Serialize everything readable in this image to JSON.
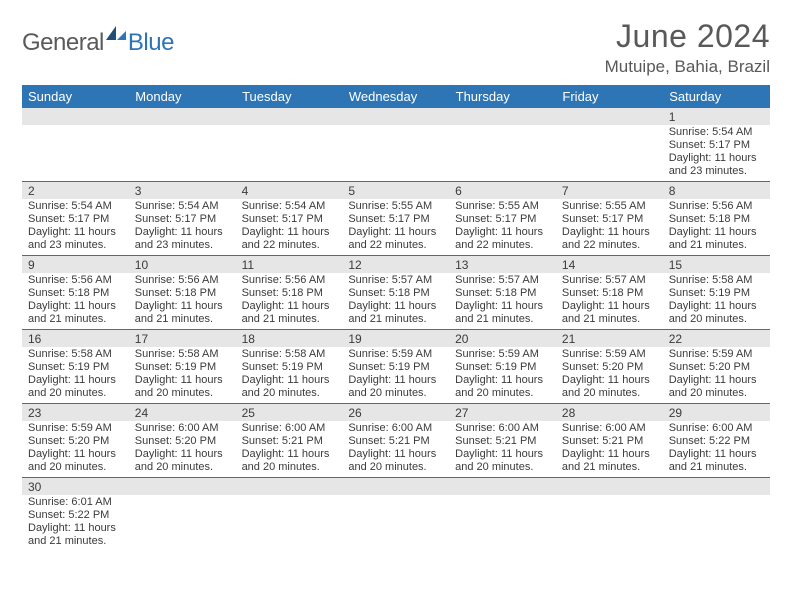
{
  "logo": {
    "part1": "General",
    "part2": "Blue",
    "primary_color": "#2e75b6",
    "gray": "#5a5a5a"
  },
  "title": "June 2024",
  "location": "Mutuipe, Bahia, Brazil",
  "header_bg": "#2e75b6",
  "header_fg": "#ffffff",
  "daynum_bg": "#e6e6e6",
  "text_color": "#3b3b3b",
  "border_color": "#2e75b6",
  "weekdays": [
    "Sunday",
    "Monday",
    "Tuesday",
    "Wednesday",
    "Thursday",
    "Friday",
    "Saturday"
  ],
  "weeks": [
    [
      null,
      null,
      null,
      null,
      null,
      null,
      {
        "n": "1",
        "sr": "5:54 AM",
        "ss": "5:17 PM",
        "dl": "11 hours and 23 minutes."
      }
    ],
    [
      {
        "n": "2",
        "sr": "5:54 AM",
        "ss": "5:17 PM",
        "dl": "11 hours and 23 minutes."
      },
      {
        "n": "3",
        "sr": "5:54 AM",
        "ss": "5:17 PM",
        "dl": "11 hours and 23 minutes."
      },
      {
        "n": "4",
        "sr": "5:54 AM",
        "ss": "5:17 PM",
        "dl": "11 hours and 22 minutes."
      },
      {
        "n": "5",
        "sr": "5:55 AM",
        "ss": "5:17 PM",
        "dl": "11 hours and 22 minutes."
      },
      {
        "n": "6",
        "sr": "5:55 AM",
        "ss": "5:17 PM",
        "dl": "11 hours and 22 minutes."
      },
      {
        "n": "7",
        "sr": "5:55 AM",
        "ss": "5:17 PM",
        "dl": "11 hours and 22 minutes."
      },
      {
        "n": "8",
        "sr": "5:56 AM",
        "ss": "5:18 PM",
        "dl": "11 hours and 21 minutes."
      }
    ],
    [
      {
        "n": "9",
        "sr": "5:56 AM",
        "ss": "5:18 PM",
        "dl": "11 hours and 21 minutes."
      },
      {
        "n": "10",
        "sr": "5:56 AM",
        "ss": "5:18 PM",
        "dl": "11 hours and 21 minutes."
      },
      {
        "n": "11",
        "sr": "5:56 AM",
        "ss": "5:18 PM",
        "dl": "11 hours and 21 minutes."
      },
      {
        "n": "12",
        "sr": "5:57 AM",
        "ss": "5:18 PM",
        "dl": "11 hours and 21 minutes."
      },
      {
        "n": "13",
        "sr": "5:57 AM",
        "ss": "5:18 PM",
        "dl": "11 hours and 21 minutes."
      },
      {
        "n": "14",
        "sr": "5:57 AM",
        "ss": "5:18 PM",
        "dl": "11 hours and 21 minutes."
      },
      {
        "n": "15",
        "sr": "5:58 AM",
        "ss": "5:19 PM",
        "dl": "11 hours and 20 minutes."
      }
    ],
    [
      {
        "n": "16",
        "sr": "5:58 AM",
        "ss": "5:19 PM",
        "dl": "11 hours and 20 minutes."
      },
      {
        "n": "17",
        "sr": "5:58 AM",
        "ss": "5:19 PM",
        "dl": "11 hours and 20 minutes."
      },
      {
        "n": "18",
        "sr": "5:58 AM",
        "ss": "5:19 PM",
        "dl": "11 hours and 20 minutes."
      },
      {
        "n": "19",
        "sr": "5:59 AM",
        "ss": "5:19 PM",
        "dl": "11 hours and 20 minutes."
      },
      {
        "n": "20",
        "sr": "5:59 AM",
        "ss": "5:19 PM",
        "dl": "11 hours and 20 minutes."
      },
      {
        "n": "21",
        "sr": "5:59 AM",
        "ss": "5:20 PM",
        "dl": "11 hours and 20 minutes."
      },
      {
        "n": "22",
        "sr": "5:59 AM",
        "ss": "5:20 PM",
        "dl": "11 hours and 20 minutes."
      }
    ],
    [
      {
        "n": "23",
        "sr": "5:59 AM",
        "ss": "5:20 PM",
        "dl": "11 hours and 20 minutes."
      },
      {
        "n": "24",
        "sr": "6:00 AM",
        "ss": "5:20 PM",
        "dl": "11 hours and 20 minutes."
      },
      {
        "n": "25",
        "sr": "6:00 AM",
        "ss": "5:21 PM",
        "dl": "11 hours and 20 minutes."
      },
      {
        "n": "26",
        "sr": "6:00 AM",
        "ss": "5:21 PM",
        "dl": "11 hours and 20 minutes."
      },
      {
        "n": "27",
        "sr": "6:00 AM",
        "ss": "5:21 PM",
        "dl": "11 hours and 20 minutes."
      },
      {
        "n": "28",
        "sr": "6:00 AM",
        "ss": "5:21 PM",
        "dl": "11 hours and 21 minutes."
      },
      {
        "n": "29",
        "sr": "6:00 AM",
        "ss": "5:22 PM",
        "dl": "11 hours and 21 minutes."
      }
    ],
    [
      {
        "n": "30",
        "sr": "6:01 AM",
        "ss": "5:22 PM",
        "dl": "11 hours and 21 minutes."
      },
      null,
      null,
      null,
      null,
      null,
      null
    ]
  ],
  "labels": {
    "sunrise": "Sunrise: ",
    "sunset": "Sunset: ",
    "daylight": "Daylight: "
  }
}
